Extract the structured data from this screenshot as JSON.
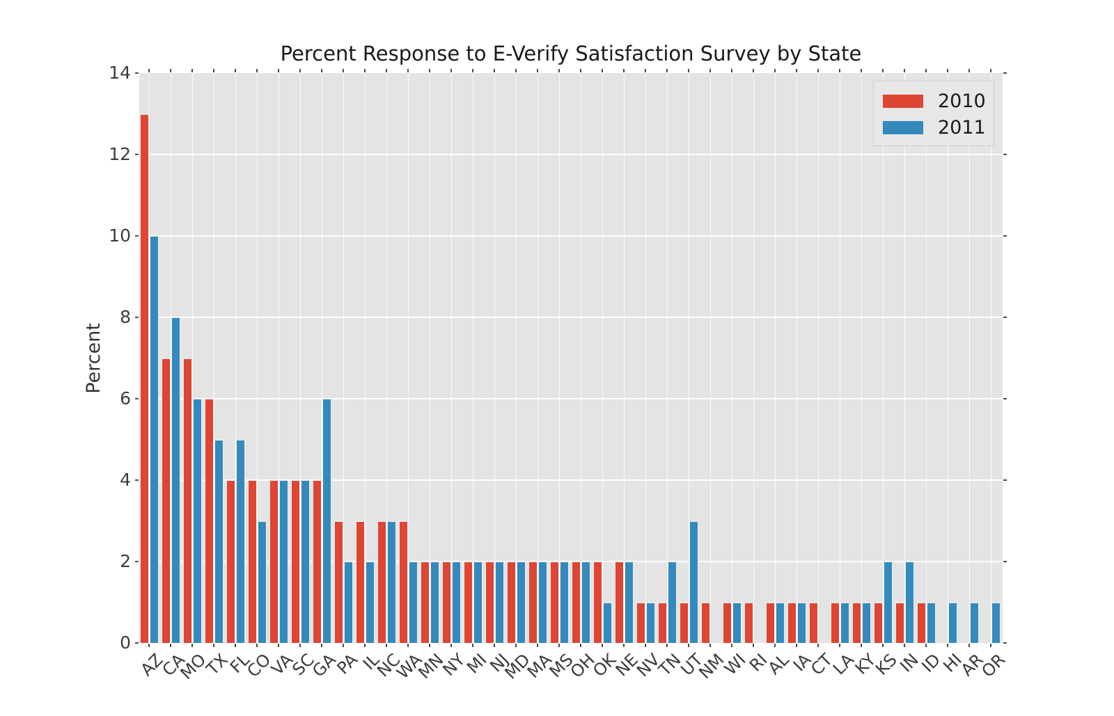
{
  "chart_data": {
    "type": "bar",
    "title": "Percent Response to E-Verify Satisfaction Survey by State",
    "xlabel": "",
    "ylabel": "Percent",
    "categories": [
      "AZ",
      "CA",
      "MO",
      "TX",
      "FL",
      "CO",
      "VA",
      "SC",
      "GA",
      "PA",
      "IL",
      "NC",
      "WA",
      "MN",
      "NY",
      "MI",
      "NJ",
      "MD",
      "MA",
      "MS",
      "OH",
      "OK",
      "NE",
      "NV",
      "TN",
      "UT",
      "NM",
      "WI",
      "RI",
      "AL",
      "IA",
      "CT",
      "LA",
      "KY",
      "KS",
      "IN",
      "ID",
      "HI",
      "AR",
      "OR"
    ],
    "series": [
      {
        "name": "2010",
        "color": "#DE4532",
        "values": [
          13,
          7,
          7,
          6,
          4,
          4,
          4,
          4,
          4,
          3,
          3,
          3,
          3,
          2,
          2,
          2,
          2,
          2,
          2,
          2,
          2,
          2,
          2,
          1,
          1,
          1,
          1,
          1,
          1,
          1,
          1,
          1,
          1,
          1,
          1,
          1,
          1,
          0,
          0,
          0
        ]
      },
      {
        "name": "2011",
        "color": "#348ABD",
        "values": [
          10,
          8,
          6,
          5,
          5,
          3,
          4,
          4,
          6,
          2,
          2,
          3,
          2,
          2,
          2,
          2,
          2,
          2,
          2,
          2,
          2,
          1,
          2,
          1,
          2,
          3,
          0,
          1,
          0,
          1,
          1,
          0,
          1,
          1,
          2,
          2,
          1,
          1,
          1,
          1
        ]
      }
    ],
    "ylim": [
      0,
      14
    ],
    "yticks": [
      0,
      2,
      4,
      6,
      8,
      10,
      12,
      14
    ],
    "grid": true,
    "grid_color": "#FFFFFF",
    "plot_background": "#E4E4E4",
    "bar_edge_color": "#EEEEEE",
    "legend_position": "upper-right"
  },
  "legend": {
    "entries": [
      {
        "label": "2010"
      },
      {
        "label": "2011"
      }
    ]
  }
}
